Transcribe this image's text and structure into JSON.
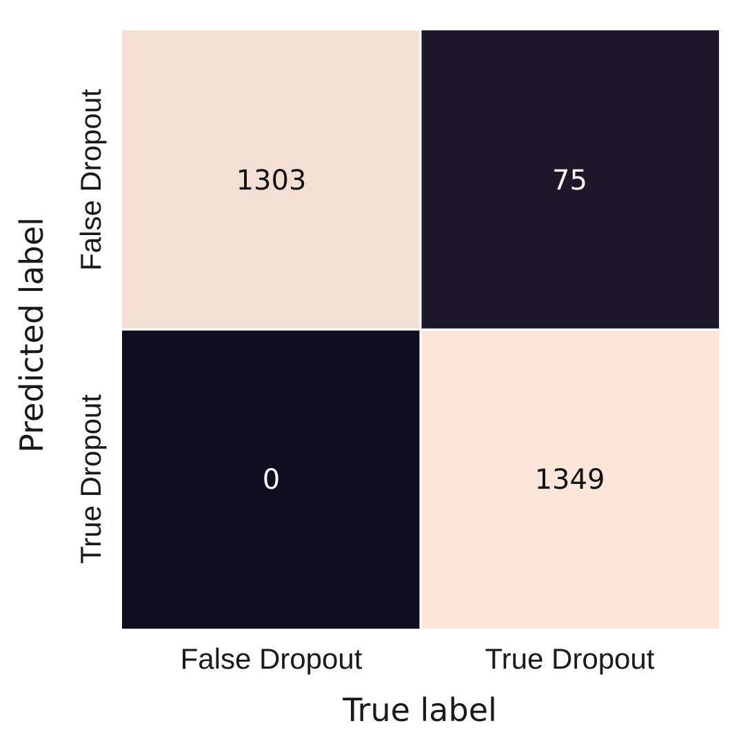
{
  "chart_data": {
    "type": "heatmap",
    "title": "",
    "xlabel": "True label",
    "ylabel": "Predicted label",
    "x_categories": [
      "False Dropout",
      "True Dropout"
    ],
    "y_categories": [
      "False Dropout",
      "True Dropout"
    ],
    "values": [
      [
        1303,
        75
      ],
      [
        0,
        1349
      ]
    ],
    "colors": {
      "low": "#110d20",
      "high": "#fbe6d9",
      "text_on_dark": "#ffffff",
      "text_on_light": "#111111"
    },
    "grid": false,
    "legend": "none"
  }
}
